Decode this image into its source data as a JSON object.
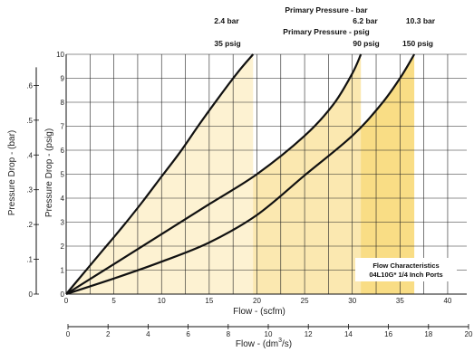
{
  "chart_data": {
    "type": "line",
    "title_bar": "Primary Pressure - bar",
    "title_psig": "Primary Pressure - psig",
    "xlabel": "Flow - (scfm)",
    "xlabel2": "Flow - (dm",
    "xlabel2_sup": "3",
    "xlabel2_tail": "/s)",
    "ylabel": "Pressure Drop - (psig)",
    "ylabel2": "Pressure Drop - (bar)",
    "xlim": [
      0,
      42
    ],
    "ylim": [
      0,
      10
    ],
    "x_ticks": [
      "0",
      "5",
      "10",
      "15",
      "20",
      "25",
      "30",
      "35",
      "40"
    ],
    "x_tick_values": [
      0,
      5,
      10,
      15,
      20,
      25,
      30,
      35,
      40
    ],
    "y_ticks": [
      "0",
      "1",
      "2",
      "3",
      "4",
      "5",
      "6",
      "7",
      "8",
      "9",
      "10"
    ],
    "y_tick_values": [
      0,
      1,
      2,
      3,
      4,
      5,
      6,
      7,
      8,
      9,
      10
    ],
    "x2_ticks": [
      "0",
      "2",
      "4",
      "6",
      "8",
      "10",
      "12",
      "14",
      "16",
      "18",
      "20"
    ],
    "x2_tick_values": [
      0,
      2,
      4,
      6,
      8,
      10,
      12,
      14,
      16,
      18,
      20
    ],
    "y2_ticks": [
      "0",
      ".1",
      ".2",
      ".3",
      ".4",
      ".5",
      ".6"
    ],
    "y2_tick_values": [
      0,
      0.1,
      0.2,
      0.3,
      0.4,
      0.5,
      0.6
    ],
    "annotation_lines": [
      "Flow Characteristics",
      "04L10G* 1/4 Inch Ports"
    ],
    "series": [
      {
        "bar_label": "2.4 bar",
        "psig_label": "35 psig",
        "fill": "#fdf2d2",
        "x": [
          0,
          2,
          4,
          6,
          8,
          10,
          12,
          14,
          16,
          18,
          19.6
        ],
        "y": [
          0,
          0.95,
          1.9,
          2.85,
          3.85,
          4.9,
          5.95,
          7.1,
          8.2,
          9.25,
          10
        ]
      },
      {
        "bar_label": "6.2 bar",
        "psig_label": "90 psig",
        "fill": "#fbe8b0",
        "x": [
          0,
          5,
          10,
          15,
          20,
          25,
          28,
          30,
          30.9
        ],
        "y": [
          0,
          1.25,
          2.5,
          3.75,
          5.0,
          6.6,
          7.9,
          9.2,
          10
        ]
      },
      {
        "bar_label": "10.3 bar",
        "psig_label": "150 psig",
        "fill": "#f9dd85",
        "x": [
          0,
          5,
          10,
          15,
          20,
          25,
          30,
          33,
          35,
          36.5
        ],
        "y": [
          0,
          0.65,
          1.35,
          2.15,
          3.3,
          4.95,
          6.6,
          7.9,
          9.0,
          10
        ]
      }
    ],
    "grid": true
  },
  "colors": {
    "line": "#111111",
    "grid": "#222222",
    "axis": "#111111"
  }
}
